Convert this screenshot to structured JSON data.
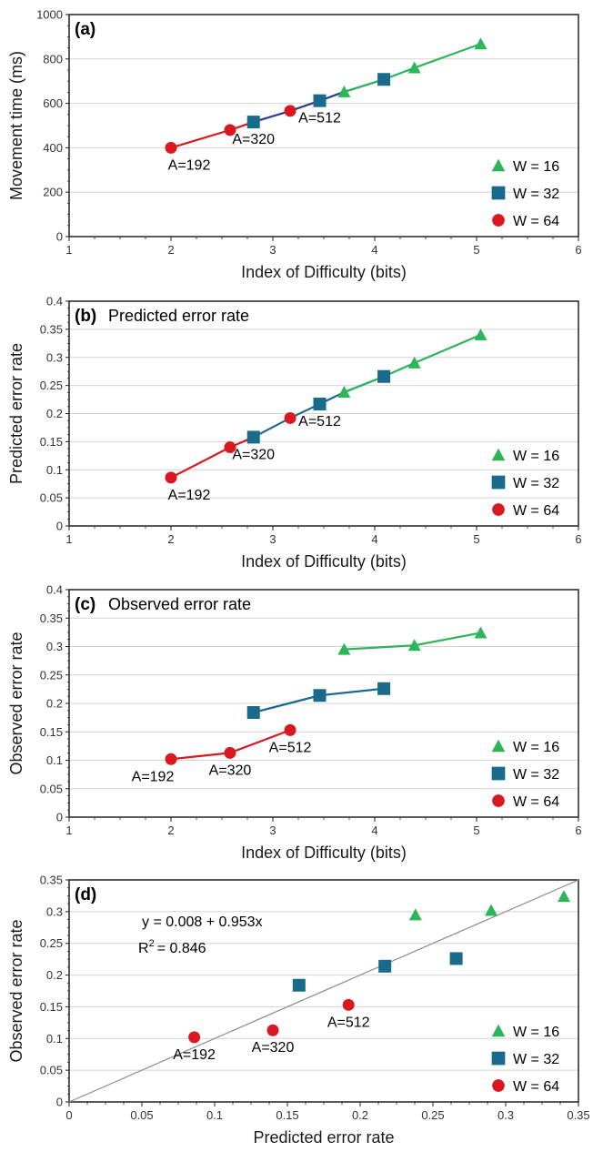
{
  "colors": {
    "W16": "#2db55a",
    "W32": "#1a6a8c",
    "W64": "#d9191f",
    "connector_a": "#2a3a9a",
    "grid": "#d4d4d4",
    "frame": "#222222",
    "unity_line": "#8c8c8c"
  },
  "chart_data": [
    {
      "id": "a",
      "type": "line",
      "tag": "(a)",
      "title": "",
      "xlabel": "Index of Difficulty (bits)",
      "ylabel": "Movement time (ms)",
      "xlim": [
        1,
        6
      ],
      "ylim": [
        0,
        1000
      ],
      "xticks": [
        "1",
        "2",
        "3",
        "4",
        "5",
        "6"
      ],
      "yticks": [
        "0",
        "200",
        "400",
        "600",
        "800",
        "1000"
      ],
      "grid": "horizontal",
      "legend": "bottom-right",
      "series": [
        {
          "name": "W = 16",
          "marker": "triangle",
          "color": "#2db55a",
          "x": [
            3.7,
            4.39,
            5.04
          ],
          "y": [
            652,
            760,
            868
          ]
        },
        {
          "name": "W = 32",
          "marker": "square",
          "color": "#1a6a8c",
          "x": [
            2.81,
            3.46,
            4.09
          ],
          "y": [
            516,
            612,
            708
          ]
        },
        {
          "name": "W = 64",
          "marker": "circle",
          "color": "#d9191f",
          "x": [
            2.0,
            2.58,
            3.17
          ],
          "y": [
            400,
            480,
            566
          ]
        }
      ],
      "connectors": [
        {
          "color": "#d9191f",
          "x": [
            2.0,
            2.58,
            2.81
          ],
          "y": [
            400,
            480,
            516
          ]
        },
        {
          "color": "#2a3a9a",
          "x": [
            2.81,
            3.17,
            3.46,
            3.7,
            4.09
          ],
          "y": [
            516,
            566,
            612,
            652,
            708
          ]
        },
        {
          "color": "#2db55a",
          "x": [
            3.7,
            4.09,
            4.39,
            5.04
          ],
          "y": [
            652,
            708,
            760,
            868
          ]
        }
      ],
      "annotations": [
        {
          "text": "A=192",
          "x": 2.0,
          "y": 400,
          "pos": "below-right"
        },
        {
          "text": "A=320",
          "x": 2.81,
          "y": 516,
          "pos": "below"
        },
        {
          "text": "A=512",
          "x": 3.46,
          "y": 612,
          "pos": "below"
        }
      ]
    },
    {
      "id": "b",
      "type": "line",
      "tag": "(b)",
      "title": "Predicted error rate",
      "xlabel": "Index of Difficulty (bits)",
      "ylabel": "Predicted error rate",
      "xlim": [
        1,
        6
      ],
      "ylim": [
        0,
        0.4
      ],
      "xticks": [
        "1",
        "2",
        "3",
        "4",
        "5",
        "6"
      ],
      "yticks": [
        "0",
        "0.05",
        "0.1",
        "0.15",
        "0.2",
        "0.25",
        "0.3",
        "0.35",
        "0.4"
      ],
      "grid": "horizontal",
      "legend": "bottom-right",
      "series": [
        {
          "name": "W = 16",
          "marker": "triangle",
          "color": "#2db55a",
          "x": [
            3.7,
            4.39,
            5.04
          ],
          "y": [
            0.238,
            0.29,
            0.34
          ]
        },
        {
          "name": "W = 32",
          "marker": "square",
          "color": "#1a6a8c",
          "x": [
            2.81,
            3.46,
            4.09
          ],
          "y": [
            0.158,
            0.217,
            0.266
          ]
        },
        {
          "name": "W = 64",
          "marker": "circle",
          "color": "#d9191f",
          "x": [
            2.0,
            2.58,
            3.17
          ],
          "y": [
            0.086,
            0.14,
            0.192
          ]
        }
      ],
      "connectors": [
        {
          "color": "#d9191f",
          "x": [
            2.0,
            2.58,
            2.81
          ],
          "y": [
            0.086,
            0.14,
            0.158
          ]
        },
        {
          "color": "#1a6a8c",
          "x": [
            2.81,
            3.17,
            3.46,
            3.7,
            4.09
          ],
          "y": [
            0.158,
            0.192,
            0.217,
            0.238,
            0.266
          ]
        },
        {
          "color": "#2db55a",
          "x": [
            3.7,
            4.09,
            4.39,
            5.04
          ],
          "y": [
            0.238,
            0.266,
            0.29,
            0.34
          ]
        }
      ],
      "annotations": [
        {
          "text": "A=192",
          "x": 2.0,
          "y": 0.086,
          "pos": "below-right"
        },
        {
          "text": "A=320",
          "x": 2.81,
          "y": 0.158,
          "pos": "below"
        },
        {
          "text": "A=512",
          "x": 3.46,
          "y": 0.217,
          "pos": "below"
        }
      ]
    },
    {
      "id": "c",
      "type": "line",
      "tag": "(c)",
      "title": "Observed error rate",
      "xlabel": "Index of Difficulty (bits)",
      "ylabel": "Observed error rate",
      "xlim": [
        1,
        6
      ],
      "ylim": [
        0,
        0.4
      ],
      "xticks": [
        "1",
        "2",
        "3",
        "4",
        "5",
        "6"
      ],
      "yticks": [
        "0",
        "0.05",
        "0.1",
        "0.15",
        "0.2",
        "0.25",
        "0.3",
        "0.35",
        "0.4"
      ],
      "grid": "horizontal",
      "legend": "bottom-right",
      "series": [
        {
          "name": "W = 16",
          "marker": "triangle",
          "color": "#2db55a",
          "x": [
            3.7,
            4.39,
            5.04
          ],
          "y": [
            0.295,
            0.302,
            0.324
          ]
        },
        {
          "name": "W = 32",
          "marker": "square",
          "color": "#1a6a8c",
          "x": [
            2.81,
            3.46,
            4.09
          ],
          "y": [
            0.184,
            0.214,
            0.226
          ]
        },
        {
          "name": "W = 64",
          "marker": "circle",
          "color": "#d9191f",
          "x": [
            2.0,
            2.58,
            3.17
          ],
          "y": [
            0.102,
            0.113,
            0.153
          ]
        }
      ],
      "connectors": [
        {
          "color": "#d9191f",
          "x": [
            2.0,
            2.58,
            3.17
          ],
          "y": [
            0.102,
            0.113,
            0.153
          ]
        },
        {
          "color": "#1a6a8c",
          "x": [
            2.81,
            3.46,
            4.09
          ],
          "y": [
            0.184,
            0.214,
            0.226
          ]
        },
        {
          "color": "#2db55a",
          "x": [
            3.7,
            4.39,
            5.04
          ],
          "y": [
            0.295,
            0.302,
            0.324
          ]
        }
      ],
      "annotations": [
        {
          "text": "A=192",
          "x": 2.0,
          "y": 0.102,
          "pos": "below-left"
        },
        {
          "text": "A=320",
          "x": 2.58,
          "y": 0.113,
          "pos": "below"
        },
        {
          "text": "A=512",
          "x": 3.17,
          "y": 0.153,
          "pos": "below"
        }
      ]
    },
    {
      "id": "d",
      "type": "scatter",
      "tag": "(d)",
      "title": "",
      "xlabel": "Predicted error rate",
      "ylabel": "Observed error rate",
      "xlim": [
        0,
        0.35
      ],
      "ylim": [
        0,
        0.35
      ],
      "xticks": [
        "0",
        "0.05",
        "0.1",
        "0.15",
        "0.2",
        "0.25",
        "0.3",
        "0.35"
      ],
      "yticks": [
        "0",
        "0.05",
        "0.1",
        "0.15",
        "0.2",
        "0.25",
        "0.3",
        "0.35"
      ],
      "grid": "horizontal",
      "legend": "bottom-right",
      "series": [
        {
          "name": "W = 16",
          "marker": "triangle",
          "color": "#2db55a",
          "x": [
            0.238,
            0.29,
            0.34
          ],
          "y": [
            0.295,
            0.302,
            0.324
          ]
        },
        {
          "name": "W = 32",
          "marker": "square",
          "color": "#1a6a8c",
          "x": [
            0.158,
            0.217,
            0.266
          ],
          "y": [
            0.184,
            0.214,
            0.226
          ]
        },
        {
          "name": "W = 64",
          "marker": "circle",
          "color": "#d9191f",
          "x": [
            0.086,
            0.14,
            0.192
          ],
          "y": [
            0.102,
            0.113,
            0.153
          ]
        }
      ],
      "reference_line": {
        "x": [
          0,
          0.35
        ],
        "y": [
          0,
          0.35
        ]
      },
      "equation": {
        "line1": "y = 0.008 + 0.953x",
        "r2_prefix": "R",
        "r2_sup": "2",
        "r2_value": "= 0.846"
      },
      "annotations": [
        {
          "text": "A=192",
          "x": 0.086,
          "y": 0.102,
          "pos": "below"
        },
        {
          "text": "A=320",
          "x": 0.14,
          "y": 0.113,
          "pos": "below"
        },
        {
          "text": "A=512",
          "x": 0.192,
          "y": 0.153,
          "pos": "below"
        }
      ]
    }
  ]
}
